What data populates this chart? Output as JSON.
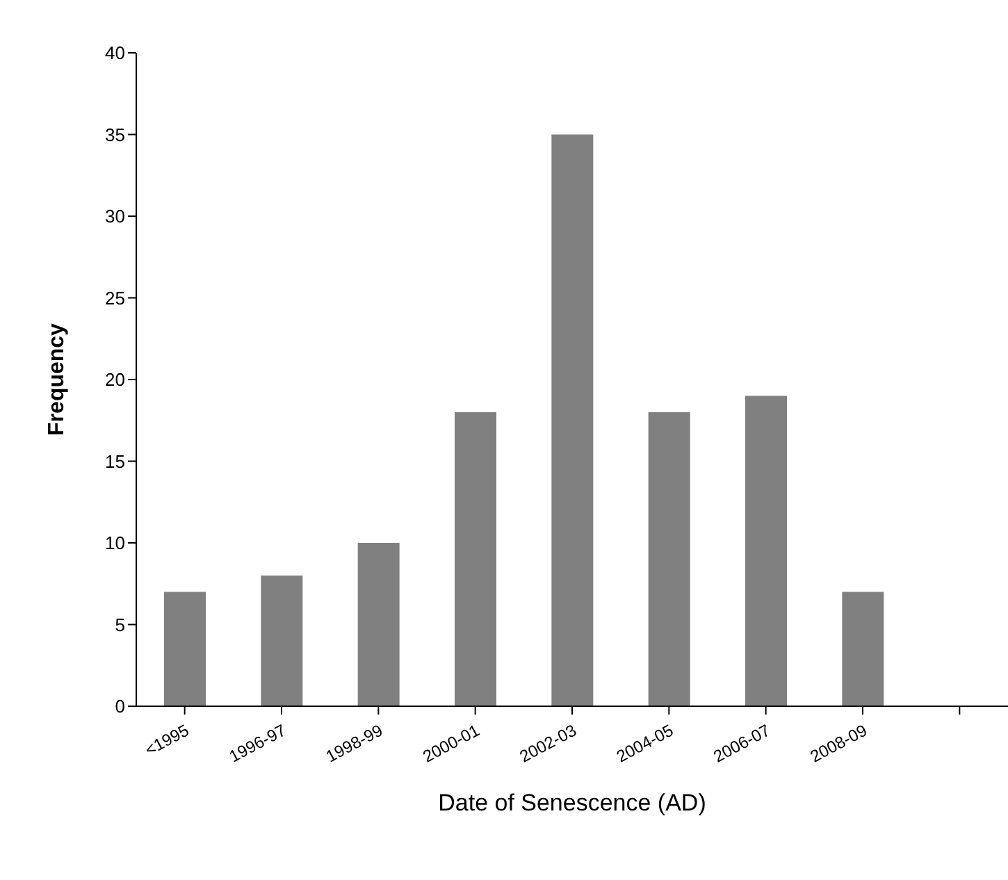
{
  "chart_data": {
    "type": "bar",
    "xlabel": "Date of Senescence (AD)",
    "ylabel": "Frequency",
    "categories": [
      "<1995",
      "1996-97",
      "1998-99",
      "2000-01",
      "2002-03",
      "2004-05",
      "2006-07",
      "2008-09",
      null
    ],
    "values": [
      7,
      8,
      10,
      18,
      35,
      18,
      19,
      7,
      null
    ],
    "color": "#808080",
    "ylim": [
      0,
      40
    ],
    "yticks": [
      0,
      5,
      10,
      15,
      20,
      25,
      30,
      35,
      40
    ],
    "grid": false,
    "legend": false
  }
}
